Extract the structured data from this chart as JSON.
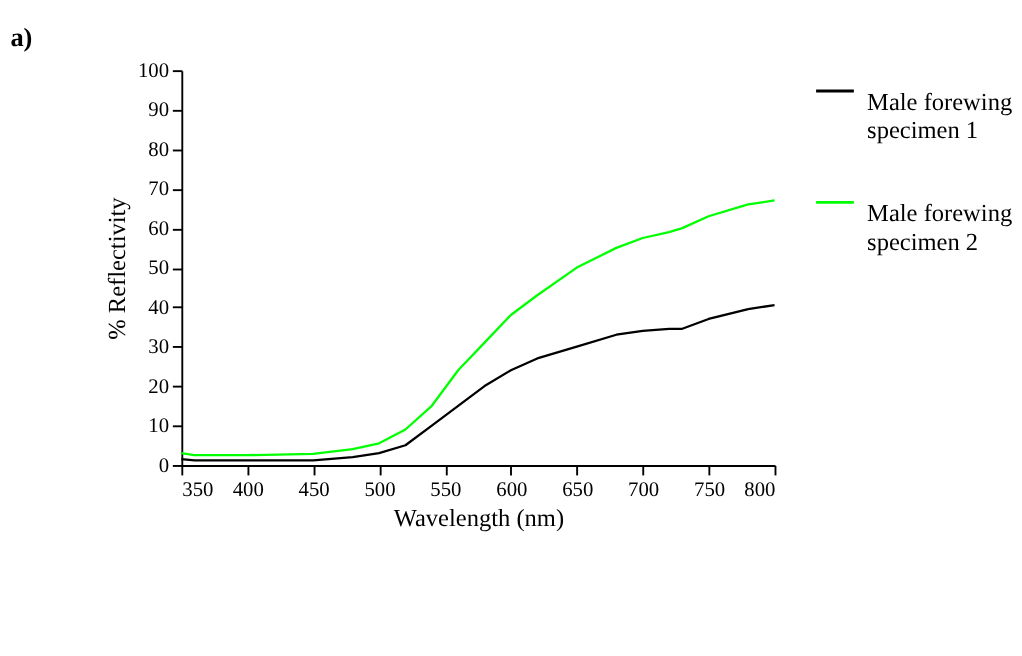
{
  "chart_data": {
    "type": "line",
    "xlabel": "Wavelength (nm)",
    "ylabel": "% Reflectivity",
    "annotations": [
      "a)"
    ],
    "xlim": [
      350,
      800
    ],
    "xticks": [
      350,
      400,
      450,
      500,
      550,
      600,
      650,
      700,
      750,
      800
    ],
    "ylim": [
      0,
      100
    ],
    "yticks": [
      0,
      10,
      20,
      30,
      40,
      50,
      60,
      70,
      80,
      90,
      100
    ],
    "grid": false,
    "legend": "top right",
    "marker": "none",
    "line_style": "solid",
    "series": [
      {
        "name": "Male forewing specimen 1",
        "color": "#000000",
        "x": [
          350,
          360,
          400,
          450,
          480,
          500,
          520,
          540,
          560,
          580,
          600,
          620,
          650,
          680,
          700,
          720,
          730,
          750,
          780,
          800
        ],
        "values": [
          1.5,
          1.2,
          1.2,
          1.2,
          2,
          3,
          5,
          10,
          15,
          20,
          24,
          27,
          30,
          33,
          34,
          34.5,
          34.5,
          37,
          39.5,
          40.5
        ]
      },
      {
        "name": "Male forewing specimen 2",
        "color": "#00ff00",
        "x": [
          350,
          360,
          400,
          450,
          480,
          500,
          520,
          540,
          560,
          580,
          600,
          620,
          650,
          680,
          700,
          720,
          730,
          750,
          780,
          800
        ],
        "values": [
          3,
          2.5,
          2.5,
          2.8,
          4,
          5.5,
          9,
          15,
          24,
          31,
          38,
          43,
          50,
          55,
          57.5,
          59,
          60,
          63,
          66,
          67
        ]
      }
    ]
  }
}
